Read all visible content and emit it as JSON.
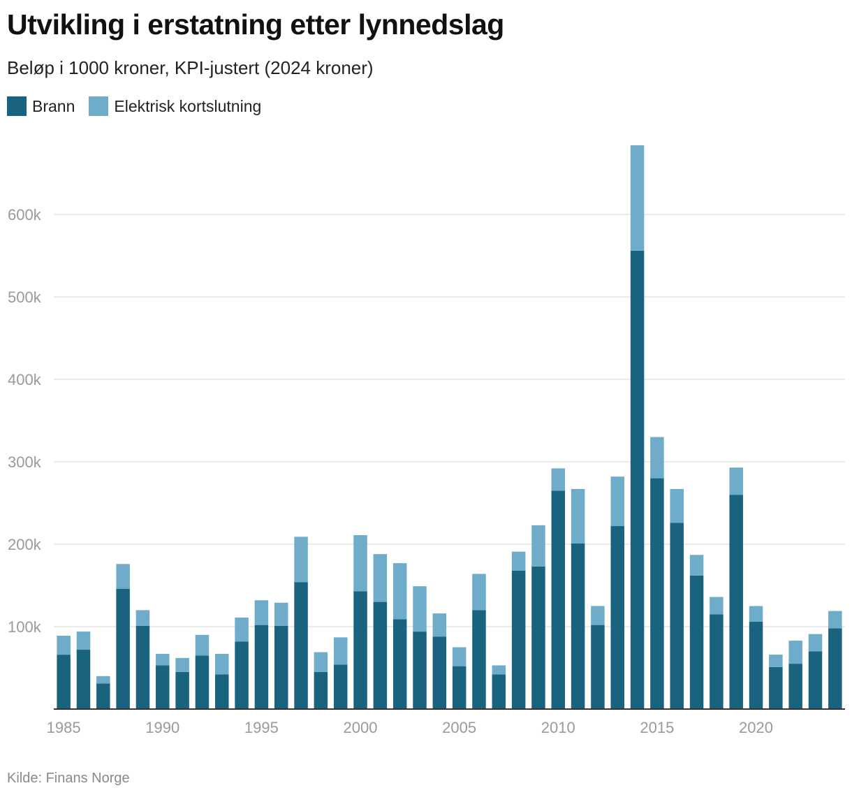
{
  "chart_data": {
    "type": "bar",
    "stacked": true,
    "title": "Utvikling i erstatning etter lynnedslag",
    "subtitle": "Beløp i 1000 kroner, KPI-justert (2024 kroner)",
    "source": "Kilde: Finans Norge",
    "xlabel": "",
    "ylabel": "",
    "ylim": [
      0,
      700000
    ],
    "yticks": [
      {
        "value": 100000,
        "label": "100k"
      },
      {
        "value": 200000,
        "label": "200k"
      },
      {
        "value": 300000,
        "label": "300k"
      },
      {
        "value": 400000,
        "label": "400k"
      },
      {
        "value": 500000,
        "label": "500k"
      },
      {
        "value": 600000,
        "label": "600k"
      }
    ],
    "xticks": [
      1985,
      1990,
      1995,
      2000,
      2005,
      2010,
      2015,
      2020
    ],
    "legend": "top-left",
    "categories": [
      1985,
      1986,
      1987,
      1988,
      1989,
      1990,
      1991,
      1992,
      1993,
      1994,
      1995,
      1996,
      1997,
      1998,
      1999,
      2000,
      2001,
      2002,
      2003,
      2004,
      2005,
      2006,
      2007,
      2008,
      2009,
      2010,
      2011,
      2012,
      2013,
      2014,
      2015,
      2016,
      2017,
      2018,
      2019,
      2020,
      2021,
      2022,
      2023,
      2024
    ],
    "series": [
      {
        "name": "Brann",
        "color": "#1a637e",
        "values": [
          66000,
          72000,
          31000,
          146000,
          101000,
          53000,
          45000,
          65000,
          42000,
          82000,
          102000,
          101000,
          154000,
          45000,
          54000,
          143000,
          130000,
          109000,
          94000,
          88000,
          52000,
          120000,
          42000,
          168000,
          173000,
          265000,
          201000,
          102000,
          222000,
          556000,
          280000,
          226000,
          162000,
          115000,
          260000,
          106000,
          51000,
          55000,
          70000,
          98000
        ]
      },
      {
        "name": "Elektrisk kortslutning",
        "color": "#6eacca",
        "values": [
          23000,
          22000,
          9000,
          30000,
          19000,
          14000,
          17000,
          25000,
          25000,
          29000,
          30000,
          28000,
          55000,
          24000,
          33000,
          68000,
          58000,
          68000,
          55000,
          28000,
          23000,
          44000,
          11000,
          23000,
          50000,
          27000,
          66000,
          23000,
          60000,
          128000,
          50000,
          41000,
          25000,
          21000,
          33000,
          19000,
          15000,
          28000,
          21000,
          21000
        ]
      }
    ]
  }
}
